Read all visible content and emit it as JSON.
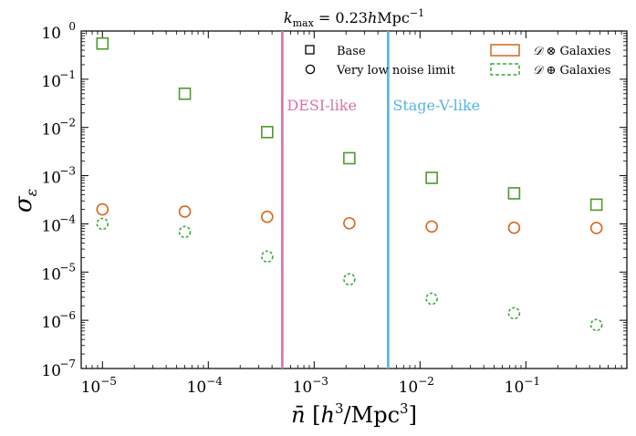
{
  "chart_data": {
    "type": "scatter",
    "title": "k_max = 0.23 h Mpc^-1",
    "title_parts": {
      "k": "k",
      "sub": "max",
      "rest": " = 0.23",
      "h": "h",
      "unit": "Mpc",
      "exp": "−1"
    },
    "xlabel": {
      "nbar": "n̄",
      "open": "[",
      "h": "h",
      "h_exp": "3",
      "unit": "/Mpc",
      "u_exp": "3",
      "close": "]"
    },
    "ylabel": {
      "sigma": "σ",
      "sub": "ε"
    },
    "x_scale": "log",
    "y_scale": "log",
    "xlim": [
      6.3e-06,
      0.9
    ],
    "ylim": [
      1e-07,
      1
    ],
    "x_ticks": [
      {
        "value": 1e-05,
        "mantissa": "10",
        "exp": "−5"
      },
      {
        "value": 0.0001,
        "mantissa": "10",
        "exp": "−4"
      },
      {
        "value": 0.001,
        "mantissa": "10",
        "exp": "−3"
      },
      {
        "value": 0.01,
        "mantissa": "10",
        "exp": "−2"
      },
      {
        "value": 0.1,
        "mantissa": "10",
        "exp": "−1"
      }
    ],
    "y_ticks": [
      {
        "value": 1,
        "mantissa": "10",
        "exp": "0"
      },
      {
        "value": 0.1,
        "mantissa": "10",
        "exp": "−1"
      },
      {
        "value": 0.01,
        "mantissa": "10",
        "exp": "−2"
      },
      {
        "value": 0.001,
        "mantissa": "10",
        "exp": "−3"
      },
      {
        "value": 0.0001,
        "mantissa": "10",
        "exp": "−4"
      },
      {
        "value": 1e-05,
        "mantissa": "10",
        "exp": "−5"
      },
      {
        "value": 1e-06,
        "mantissa": "10",
        "exp": "−6"
      },
      {
        "value": 1e-07,
        "mantissa": "10",
        "exp": "−7"
      }
    ],
    "x": [
      1e-05,
      6e-05,
      0.00036,
      0.00215,
      0.0129,
      0.0774,
      0.464
    ],
    "series": [
      {
        "name": "Base, D ⊕ Galaxies",
        "marker": "square",
        "color": "#4c9a2a",
        "dashed": false,
        "values": [
          0.55,
          0.05,
          0.008,
          0.0023,
          0.0009,
          0.00043,
          0.00025
        ]
      },
      {
        "name": "Very low noise limit, D ⊗ Galaxies",
        "marker": "circle",
        "color": "#d2691e",
        "dashed": false,
        "values": [
          0.0002,
          0.00018,
          0.00014,
          0.000103,
          8.8e-05,
          8.3e-05,
          8.2e-05
        ]
      },
      {
        "name": "Very low noise limit, D ⊕ Galaxies",
        "marker": "circle",
        "color": "#3aaa35",
        "dashed": true,
        "values": [
          0.0001,
          6.8e-05,
          2.1e-05,
          7.1e-06,
          2.8e-06,
          1.4e-06,
          8e-07
        ]
      }
    ],
    "vlines": [
      {
        "x": 0.0005,
        "label": "DESI-like",
        "color": "#d873a8"
      },
      {
        "x": 0.005,
        "label": "Stage-V-like",
        "color": "#55b4e0"
      }
    ],
    "legend_markers": [
      {
        "label": "Base",
        "shape": "square"
      },
      {
        "label": "Very low noise limit",
        "shape": "circle"
      }
    ],
    "legend_colors": [
      {
        "calD": "𝒟",
        "op": " ⊗ ",
        "rest": "Galaxies",
        "color": "#d2691e",
        "dashed": false
      },
      {
        "calD": "𝒟",
        "op": " ⊕ ",
        "rest": "Galaxies",
        "color": "#3aaa35",
        "dashed": true
      }
    ],
    "legend_position": "top-right"
  }
}
